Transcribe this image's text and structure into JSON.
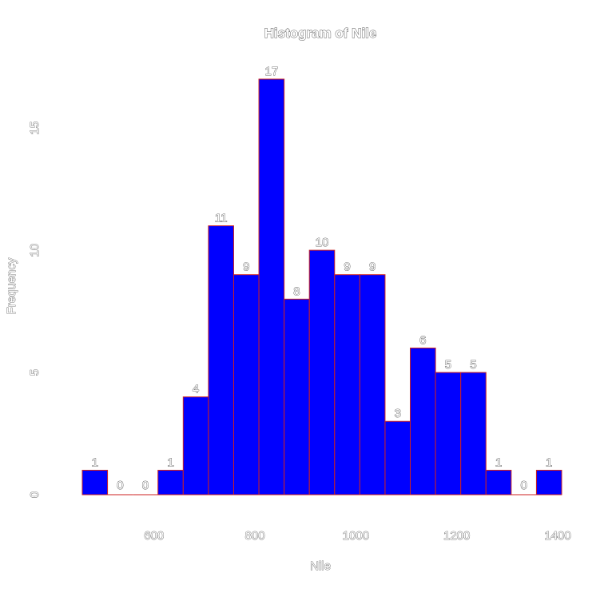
{
  "chart_data": {
    "type": "bar",
    "title": "Histogram of Nile",
    "xlabel": "Nile",
    "ylabel": "Frequency",
    "bin_edges": [
      450,
      500,
      550,
      600,
      650,
      700,
      750,
      800,
      850,
      900,
      950,
      1000,
      1050,
      1100,
      1150,
      1200,
      1250,
      1300,
      1350,
      1400
    ],
    "values": [
      1,
      0,
      0,
      1,
      4,
      11,
      9,
      17,
      8,
      10,
      9,
      9,
      3,
      6,
      5,
      5,
      1,
      0,
      1
    ],
    "value_labels": [
      "1",
      "0",
      "0",
      "1",
      "4",
      "11",
      "9",
      "17",
      "8",
      "10",
      "9",
      "9",
      "3",
      "6",
      "5",
      "5",
      "1",
      "0",
      "1"
    ],
    "xlim": [
      450,
      1400
    ],
    "ylim": [
      0,
      17
    ],
    "x_ticks": [
      600,
      800,
      1000,
      1200,
      1400
    ],
    "x_tick_labels": [
      "600",
      "800",
      "1000",
      "1200",
      "1400"
    ],
    "y_ticks": [
      0,
      5,
      10,
      15
    ],
    "y_tick_labels": [
      "0",
      "5",
      "10",
      "15"
    ],
    "bar_fill": "#0000ff",
    "bar_border": "#cc2222",
    "grid": false
  }
}
